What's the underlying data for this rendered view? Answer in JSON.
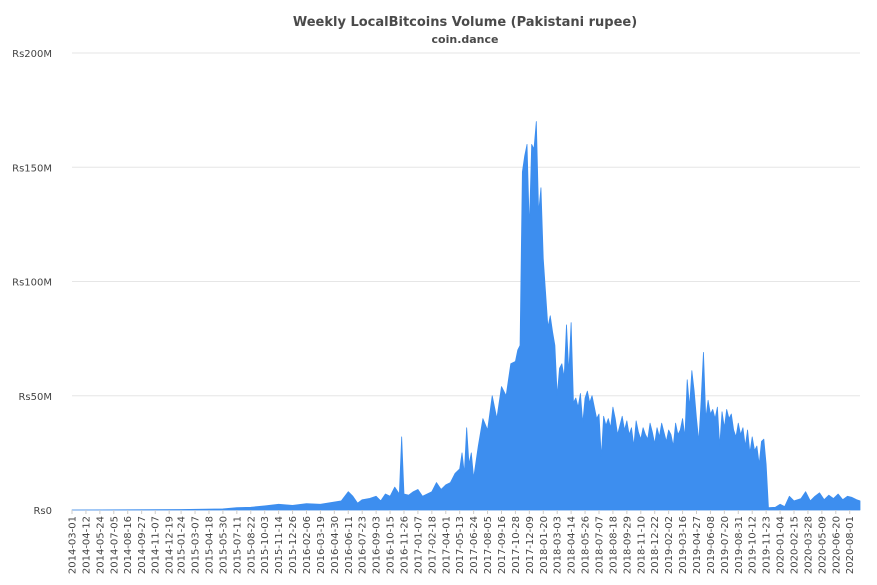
{
  "chart_data": {
    "type": "area",
    "title": "Weekly LocalBitcoins Volume (Pakistani rupee)",
    "subtitle": "coin.dance",
    "xlabel": "",
    "ylabel": "",
    "ylim": [
      0,
      200000000
    ],
    "yticks": [
      {
        "value": 0,
        "label": "Rs0"
      },
      {
        "value": 50000000,
        "label": "Rs50M"
      },
      {
        "value": 100000000,
        "label": "Rs100M"
      },
      {
        "value": 150000000,
        "label": "Rs150M"
      },
      {
        "value": 200000000,
        "label": "Rs200M"
      }
    ],
    "grid": true,
    "legend": "none",
    "x_start": "2014-03-01",
    "x_end": "2020-09-01",
    "xticks": [
      "2014-03-01",
      "2014-04-12",
      "2014-05-24",
      "2014-07-05",
      "2014-08-16",
      "2014-09-27",
      "2014-11-07",
      "2014-12-19",
      "2015-01-24",
      "2015-03-07",
      "2015-04-18",
      "2015-05-30",
      "2015-07-11",
      "2015-08-22",
      "2015-10-03",
      "2015-11-14",
      "2015-12-26",
      "2016-02-06",
      "2016-03-19",
      "2016-04-30",
      "2016-06-11",
      "2016-07-23",
      "2016-09-03",
      "2016-10-15",
      "2016-11-26",
      "2017-01-07",
      "2017-02-18",
      "2017-04-01",
      "2017-05-13",
      "2017-06-24",
      "2017-08-05",
      "2017-09-16",
      "2017-10-28",
      "2017-12-09",
      "2018-01-20",
      "2018-03-03",
      "2018-04-14",
      "2018-05-26",
      "2018-07-07",
      "2018-08-18",
      "2018-09-29",
      "2018-11-10",
      "2018-12-22",
      "2019-02-02",
      "2019-03-16",
      "2019-04-27",
      "2019-06-08",
      "2019-07-20",
      "2019-08-31",
      "2019-10-12",
      "2019-11-23",
      "2020-01-04",
      "2020-02-15",
      "2020-03-28",
      "2020-05-09",
      "2020-06-20",
      "2020-08-01"
    ],
    "series": [
      {
        "color": "#3d8eef",
        "points": [
          [
            "2014-03-01",
            0
          ],
          [
            "2015-01-24",
            200000
          ],
          [
            "2015-05-30",
            500000
          ],
          [
            "2015-07-11",
            1000000
          ],
          [
            "2015-08-22",
            1200000
          ],
          [
            "2015-10-03",
            1800000
          ],
          [
            "2015-11-14",
            2500000
          ],
          [
            "2015-12-26",
            2000000
          ],
          [
            "2016-02-06",
            2800000
          ],
          [
            "2016-03-19",
            2500000
          ],
          [
            "2016-04-30",
            3500000
          ],
          [
            "2016-05-21",
            4000000
          ],
          [
            "2016-06-11",
            8000000
          ],
          [
            "2016-06-25",
            6000000
          ],
          [
            "2016-07-09",
            3000000
          ],
          [
            "2016-07-23",
            4500000
          ],
          [
            "2016-08-13",
            5000000
          ],
          [
            "2016-09-03",
            6000000
          ],
          [
            "2016-09-17",
            4000000
          ],
          [
            "2016-10-01",
            7000000
          ],
          [
            "2016-10-15",
            6000000
          ],
          [
            "2016-10-29",
            10000000
          ],
          [
            "2016-11-12",
            7000000
          ],
          [
            "2016-11-19",
            32000000
          ],
          [
            "2016-11-26",
            7000000
          ],
          [
            "2016-12-10",
            6500000
          ],
          [
            "2016-12-24",
            8000000
          ],
          [
            "2017-01-07",
            9000000
          ],
          [
            "2017-01-21",
            6000000
          ],
          [
            "2017-02-04",
            7000000
          ],
          [
            "2017-02-18",
            8000000
          ],
          [
            "2017-03-04",
            12000000
          ],
          [
            "2017-03-18",
            9000000
          ],
          [
            "2017-04-01",
            11000000
          ],
          [
            "2017-04-15",
            12000000
          ],
          [
            "2017-04-29",
            16000000
          ],
          [
            "2017-05-13",
            18000000
          ],
          [
            "2017-05-20",
            25000000
          ],
          [
            "2017-05-27",
            16000000
          ],
          [
            "2017-06-03",
            36000000
          ],
          [
            "2017-06-10",
            20000000
          ],
          [
            "2017-06-17",
            25000000
          ],
          [
            "2017-06-24",
            14000000
          ],
          [
            "2017-07-08",
            28000000
          ],
          [
            "2017-07-22",
            40000000
          ],
          [
            "2017-08-05",
            35000000
          ],
          [
            "2017-08-19",
            50000000
          ],
          [
            "2017-09-02",
            40000000
          ],
          [
            "2017-09-16",
            54000000
          ],
          [
            "2017-09-30",
            50000000
          ],
          [
            "2017-10-14",
            64000000
          ],
          [
            "2017-10-28",
            65000000
          ],
          [
            "2017-11-04",
            70000000
          ],
          [
            "2017-11-11",
            72000000
          ],
          [
            "2017-11-18",
            148000000
          ],
          [
            "2017-11-25",
            155000000
          ],
          [
            "2017-12-02",
            160000000
          ],
          [
            "2017-12-09",
            123000000
          ],
          [
            "2017-12-16",
            160000000
          ],
          [
            "2017-12-23",
            158000000
          ],
          [
            "2017-12-30",
            170000000
          ],
          [
            "2018-01-06",
            130000000
          ],
          [
            "2018-01-13",
            141000000
          ],
          [
            "2018-01-20",
            110000000
          ],
          [
            "2018-01-27",
            95000000
          ],
          [
            "2018-02-03",
            80000000
          ],
          [
            "2018-02-10",
            85000000
          ],
          [
            "2018-02-17",
            78000000
          ],
          [
            "2018-02-24",
            72000000
          ],
          [
            "2018-03-03",
            50000000
          ],
          [
            "2018-03-10",
            62000000
          ],
          [
            "2018-03-17",
            64000000
          ],
          [
            "2018-03-24",
            58000000
          ],
          [
            "2018-03-31",
            81000000
          ],
          [
            "2018-04-07",
            60000000
          ],
          [
            "2018-04-14",
            82000000
          ],
          [
            "2018-04-21",
            47000000
          ],
          [
            "2018-04-28",
            49000000
          ],
          [
            "2018-05-05",
            45000000
          ],
          [
            "2018-05-12",
            51000000
          ],
          [
            "2018-05-19",
            38000000
          ],
          [
            "2018-05-26",
            49000000
          ],
          [
            "2018-06-02",
            52000000
          ],
          [
            "2018-06-09",
            47000000
          ],
          [
            "2018-06-16",
            50000000
          ],
          [
            "2018-06-30",
            40000000
          ],
          [
            "2018-07-07",
            42000000
          ],
          [
            "2018-07-14",
            23000000
          ],
          [
            "2018-07-21",
            41000000
          ],
          [
            "2018-07-28",
            37000000
          ],
          [
            "2018-08-04",
            40000000
          ],
          [
            "2018-08-11",
            36000000
          ],
          [
            "2018-08-18",
            45000000
          ],
          [
            "2018-08-25",
            40000000
          ],
          [
            "2018-09-01",
            33000000
          ],
          [
            "2018-09-08",
            37000000
          ],
          [
            "2018-09-15",
            41000000
          ],
          [
            "2018-09-22",
            35000000
          ],
          [
            "2018-09-29",
            39000000
          ],
          [
            "2018-10-06",
            33000000
          ],
          [
            "2018-10-13",
            36000000
          ],
          [
            "2018-10-20",
            28000000
          ],
          [
            "2018-10-27",
            39000000
          ],
          [
            "2018-11-03",
            34000000
          ],
          [
            "2018-11-10",
            31000000
          ],
          [
            "2018-11-17",
            36000000
          ],
          [
            "2018-11-24",
            33000000
          ],
          [
            "2018-12-01",
            31000000
          ],
          [
            "2018-12-08",
            38000000
          ],
          [
            "2018-12-15",
            34000000
          ],
          [
            "2018-12-22",
            29000000
          ],
          [
            "2018-12-29",
            36000000
          ],
          [
            "2019-01-05",
            32000000
          ],
          [
            "2019-01-12",
            38000000
          ],
          [
            "2019-01-19",
            34000000
          ],
          [
            "2019-01-26",
            30000000
          ],
          [
            "2019-02-02",
            35000000
          ],
          [
            "2019-02-09",
            33000000
          ],
          [
            "2019-02-16",
            28000000
          ],
          [
            "2019-02-23",
            38000000
          ],
          [
            "2019-03-02",
            33000000
          ],
          [
            "2019-03-09",
            35000000
          ],
          [
            "2019-03-16",
            40000000
          ],
          [
            "2019-03-23",
            32000000
          ],
          [
            "2019-03-30",
            57000000
          ],
          [
            "2019-04-06",
            45000000
          ],
          [
            "2019-04-13",
            61000000
          ],
          [
            "2019-04-20",
            52000000
          ],
          [
            "2019-04-27",
            40000000
          ],
          [
            "2019-05-04",
            30000000
          ],
          [
            "2019-05-11",
            48000000
          ],
          [
            "2019-05-18",
            69000000
          ],
          [
            "2019-05-25",
            40000000
          ],
          [
            "2019-06-01",
            48000000
          ],
          [
            "2019-06-08",
            42000000
          ],
          [
            "2019-06-15",
            44000000
          ],
          [
            "2019-06-22",
            40000000
          ],
          [
            "2019-06-29",
            45000000
          ],
          [
            "2019-07-06",
            28000000
          ],
          [
            "2019-07-13",
            43000000
          ],
          [
            "2019-07-20",
            36000000
          ],
          [
            "2019-07-27",
            44000000
          ],
          [
            "2019-08-03",
            40000000
          ],
          [
            "2019-08-10",
            42000000
          ],
          [
            "2019-08-17",
            35000000
          ],
          [
            "2019-08-24",
            32000000
          ],
          [
            "2019-08-31",
            38000000
          ],
          [
            "2019-09-07",
            33000000
          ],
          [
            "2019-09-14",
            36000000
          ],
          [
            "2019-09-21",
            28000000
          ],
          [
            "2019-09-28",
            35000000
          ],
          [
            "2019-10-05",
            25000000
          ],
          [
            "2019-10-12",
            32000000
          ],
          [
            "2019-10-19",
            26000000
          ],
          [
            "2019-10-26",
            28000000
          ],
          [
            "2019-11-02",
            20000000
          ],
          [
            "2019-11-09",
            30000000
          ],
          [
            "2019-11-16",
            31000000
          ],
          [
            "2019-11-23",
            20000000
          ],
          [
            "2019-11-30",
            1000000
          ],
          [
            "2019-12-21",
            1200000
          ],
          [
            "2020-01-04",
            2500000
          ],
          [
            "2020-01-18",
            1500000
          ],
          [
            "2020-02-01",
            6000000
          ],
          [
            "2020-02-15",
            4000000
          ],
          [
            "2020-03-07",
            5000000
          ],
          [
            "2020-03-21",
            8000000
          ],
          [
            "2020-04-04",
            4000000
          ],
          [
            "2020-04-18",
            6000000
          ],
          [
            "2020-05-02",
            7500000
          ],
          [
            "2020-05-16",
            4500000
          ],
          [
            "2020-05-30",
            6500000
          ],
          [
            "2020-06-13",
            5000000
          ],
          [
            "2020-06-27",
            7000000
          ],
          [
            "2020-07-11",
            4500000
          ],
          [
            "2020-07-25",
            6000000
          ],
          [
            "2020-08-08",
            5500000
          ],
          [
            "2020-08-22",
            4500000
          ],
          [
            "2020-09-01",
            4000000
          ]
        ]
      }
    ]
  }
}
